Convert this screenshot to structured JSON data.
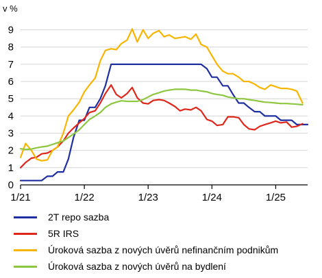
{
  "chart_data": {
    "type": "line",
    "unit_label": "v %",
    "y_ticks": [
      0,
      1,
      2,
      3,
      4,
      5,
      6,
      7,
      8,
      9
    ],
    "ylim": [
      0,
      9.3
    ],
    "x_ticks": [
      {
        "label": "1/21",
        "x": 2021.0
      },
      {
        "label": "1/22",
        "x": 2022.0
      },
      {
        "label": "1/23",
        "x": 2023.0
      },
      {
        "label": "1/24",
        "x": 2024.0
      },
      {
        "label": "1/25",
        "x": 2025.0
      }
    ],
    "xlim": [
      2021.0,
      2025.5
    ],
    "grid": "horizontal",
    "legend_position": "bottom",
    "series": [
      {
        "name": "2T repo sazba",
        "color": "#1f2ea0",
        "points": [
          [
            2021.0,
            0.25
          ],
          [
            2021.33,
            0.25
          ],
          [
            2021.42,
            0.5
          ],
          [
            2021.5,
            0.5
          ],
          [
            2021.58,
            0.75
          ],
          [
            2021.67,
            0.75
          ],
          [
            2021.75,
            1.5
          ],
          [
            2021.83,
            2.75
          ],
          [
            2021.92,
            3.75
          ],
          [
            2022.0,
            3.75
          ],
          [
            2022.08,
            4.5
          ],
          [
            2022.17,
            4.5
          ],
          [
            2022.25,
            5.0
          ],
          [
            2022.33,
            5.75
          ],
          [
            2022.42,
            7.0
          ],
          [
            2022.5,
            7.0
          ],
          [
            2023.0,
            7.0
          ],
          [
            2023.5,
            7.0
          ],
          [
            2023.83,
            7.0
          ],
          [
            2023.92,
            6.75
          ],
          [
            2024.0,
            6.25
          ],
          [
            2024.08,
            6.25
          ],
          [
            2024.17,
            5.75
          ],
          [
            2024.25,
            5.75
          ],
          [
            2024.33,
            5.25
          ],
          [
            2024.42,
            4.75
          ],
          [
            2024.5,
            4.75
          ],
          [
            2024.58,
            4.5
          ],
          [
            2024.67,
            4.25
          ],
          [
            2024.75,
            4.25
          ],
          [
            2024.83,
            4.0
          ],
          [
            2024.92,
            4.0
          ],
          [
            2025.0,
            4.0
          ],
          [
            2025.08,
            3.75
          ],
          [
            2025.17,
            3.75
          ],
          [
            2025.25,
            3.75
          ],
          [
            2025.33,
            3.5
          ],
          [
            2025.42,
            3.5
          ],
          [
            2025.5,
            3.5
          ]
        ]
      },
      {
        "name": "5R IRS",
        "color": "#e0261b",
        "points": [
          [
            2021.0,
            1.0
          ],
          [
            2021.08,
            1.3
          ],
          [
            2021.17,
            1.55
          ],
          [
            2021.25,
            1.6
          ],
          [
            2021.33,
            1.8
          ],
          [
            2021.42,
            1.85
          ],
          [
            2021.5,
            2.0
          ],
          [
            2021.58,
            2.2
          ],
          [
            2021.67,
            2.55
          ],
          [
            2021.75,
            3.0
          ],
          [
            2021.83,
            3.3
          ],
          [
            2021.92,
            3.6
          ],
          [
            2022.0,
            3.85
          ],
          [
            2022.08,
            4.2
          ],
          [
            2022.17,
            4.3
          ],
          [
            2022.25,
            4.75
          ],
          [
            2022.33,
            5.3
          ],
          [
            2022.42,
            5.8
          ],
          [
            2022.5,
            5.25
          ],
          [
            2022.58,
            5.05
          ],
          [
            2022.67,
            5.3
          ],
          [
            2022.75,
            5.65
          ],
          [
            2022.83,
            5.05
          ],
          [
            2022.92,
            4.75
          ],
          [
            2023.0,
            4.7
          ],
          [
            2023.08,
            4.9
          ],
          [
            2023.17,
            4.95
          ],
          [
            2023.25,
            4.9
          ],
          [
            2023.33,
            4.75
          ],
          [
            2023.42,
            4.55
          ],
          [
            2023.5,
            4.3
          ],
          [
            2023.58,
            4.4
          ],
          [
            2023.67,
            4.35
          ],
          [
            2023.75,
            4.5
          ],
          [
            2023.83,
            4.3
          ],
          [
            2023.92,
            3.8
          ],
          [
            2024.0,
            3.7
          ],
          [
            2024.08,
            3.45
          ],
          [
            2024.17,
            3.5
          ],
          [
            2024.25,
            3.95
          ],
          [
            2024.33,
            3.95
          ],
          [
            2024.42,
            3.9
          ],
          [
            2024.5,
            3.5
          ],
          [
            2024.58,
            3.25
          ],
          [
            2024.67,
            3.2
          ],
          [
            2024.75,
            3.4
          ],
          [
            2024.83,
            3.5
          ],
          [
            2024.92,
            3.6
          ],
          [
            2025.0,
            3.7
          ],
          [
            2025.08,
            3.6
          ],
          [
            2025.17,
            3.65
          ],
          [
            2025.25,
            3.35
          ],
          [
            2025.33,
            3.4
          ],
          [
            2025.42,
            3.55
          ]
        ]
      },
      {
        "name": "Úroková sazba z nových úvěrů nefinančním podnikům",
        "color": "#f7b500",
        "points": [
          [
            2021.0,
            1.6
          ],
          [
            2021.08,
            2.4
          ],
          [
            2021.17,
            2.0
          ],
          [
            2021.25,
            1.5
          ],
          [
            2021.33,
            1.4
          ],
          [
            2021.42,
            1.45
          ],
          [
            2021.5,
            2.0
          ],
          [
            2021.58,
            2.2
          ],
          [
            2021.67,
            3.0
          ],
          [
            2021.75,
            4.0
          ],
          [
            2021.83,
            4.35
          ],
          [
            2021.92,
            4.8
          ],
          [
            2022.0,
            5.4
          ],
          [
            2022.08,
            5.8
          ],
          [
            2022.17,
            6.2
          ],
          [
            2022.25,
            7.2
          ],
          [
            2022.33,
            7.8
          ],
          [
            2022.42,
            7.9
          ],
          [
            2022.5,
            7.85
          ],
          [
            2022.58,
            8.2
          ],
          [
            2022.67,
            8.4
          ],
          [
            2022.75,
            9.05
          ],
          [
            2022.83,
            8.3
          ],
          [
            2022.92,
            9.0
          ],
          [
            2023.0,
            8.5
          ],
          [
            2023.08,
            8.8
          ],
          [
            2023.17,
            8.95
          ],
          [
            2023.25,
            8.6
          ],
          [
            2023.33,
            8.7
          ],
          [
            2023.42,
            8.5
          ],
          [
            2023.5,
            8.55
          ],
          [
            2023.58,
            8.6
          ],
          [
            2023.67,
            8.45
          ],
          [
            2023.75,
            8.75
          ],
          [
            2023.83,
            8.15
          ],
          [
            2023.92,
            8.0
          ],
          [
            2024.0,
            7.5
          ],
          [
            2024.08,
            7.0
          ],
          [
            2024.17,
            6.6
          ],
          [
            2024.25,
            6.45
          ],
          [
            2024.33,
            6.45
          ],
          [
            2024.42,
            6.25
          ],
          [
            2024.5,
            6.0
          ],
          [
            2024.58,
            6.0
          ],
          [
            2024.67,
            5.85
          ],
          [
            2024.75,
            5.65
          ],
          [
            2024.83,
            5.55
          ],
          [
            2024.92,
            5.8
          ],
          [
            2025.0,
            5.7
          ],
          [
            2025.08,
            5.6
          ],
          [
            2025.17,
            5.6
          ],
          [
            2025.25,
            5.55
          ],
          [
            2025.33,
            5.45
          ],
          [
            2025.42,
            4.75
          ]
        ]
      },
      {
        "name": "Úroková sazba z nových úvěrů na bydlení",
        "color": "#8dc63f",
        "points": [
          [
            2021.0,
            2.1
          ],
          [
            2021.08,
            2.05
          ],
          [
            2021.17,
            2.08
          ],
          [
            2021.25,
            2.15
          ],
          [
            2021.33,
            2.2
          ],
          [
            2021.42,
            2.25
          ],
          [
            2021.5,
            2.35
          ],
          [
            2021.58,
            2.45
          ],
          [
            2021.67,
            2.55
          ],
          [
            2021.75,
            2.75
          ],
          [
            2021.83,
            2.95
          ],
          [
            2021.92,
            3.2
          ],
          [
            2022.0,
            3.5
          ],
          [
            2022.08,
            3.8
          ],
          [
            2022.17,
            4.0
          ],
          [
            2022.25,
            4.2
          ],
          [
            2022.33,
            4.5
          ],
          [
            2022.42,
            4.7
          ],
          [
            2022.5,
            4.8
          ],
          [
            2022.58,
            4.88
          ],
          [
            2022.67,
            4.85
          ],
          [
            2022.75,
            4.85
          ],
          [
            2022.83,
            4.85
          ],
          [
            2022.92,
            4.95
          ],
          [
            2023.0,
            5.1
          ],
          [
            2023.08,
            5.25
          ],
          [
            2023.17,
            5.35
          ],
          [
            2023.25,
            5.45
          ],
          [
            2023.33,
            5.5
          ],
          [
            2023.42,
            5.55
          ],
          [
            2023.5,
            5.55
          ],
          [
            2023.58,
            5.55
          ],
          [
            2023.67,
            5.5
          ],
          [
            2023.75,
            5.5
          ],
          [
            2023.83,
            5.45
          ],
          [
            2023.92,
            5.4
          ],
          [
            2024.0,
            5.3
          ],
          [
            2024.08,
            5.25
          ],
          [
            2024.17,
            5.2
          ],
          [
            2024.25,
            5.1
          ],
          [
            2024.33,
            5.05
          ],
          [
            2024.42,
            5.0
          ],
          [
            2024.5,
            5.0
          ],
          [
            2024.58,
            4.95
          ],
          [
            2024.67,
            4.9
          ],
          [
            2024.75,
            4.85
          ],
          [
            2024.83,
            4.8
          ],
          [
            2024.92,
            4.78
          ],
          [
            2025.0,
            4.75
          ],
          [
            2025.08,
            4.72
          ],
          [
            2025.17,
            4.72
          ],
          [
            2025.25,
            4.7
          ],
          [
            2025.33,
            4.68
          ],
          [
            2025.42,
            4.65
          ]
        ]
      }
    ]
  }
}
